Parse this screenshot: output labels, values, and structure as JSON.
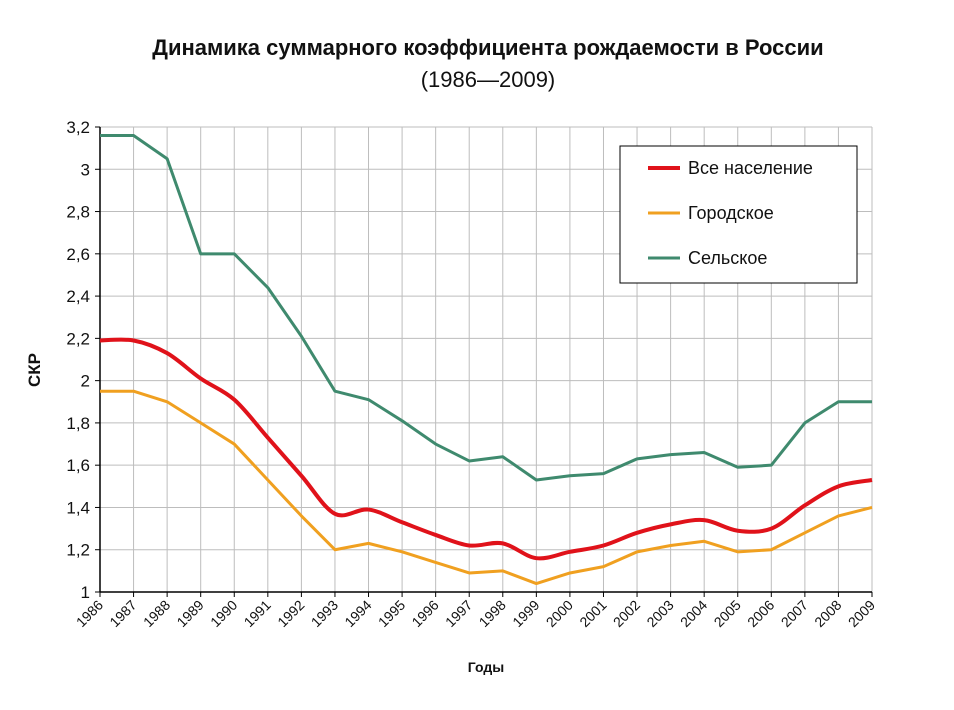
{
  "chart_data": {
    "type": "line",
    "title": "Динамика суммарного коэффициента рождаемости в России",
    "subtitle": "(1986—2009)",
    "xlabel": "Годы",
    "ylabel": "СКР",
    "ylim": [
      1,
      3.2
    ],
    "yticks": [
      "1",
      "1,2",
      "1,4",
      "1,6",
      "1,8",
      "2",
      "2,2",
      "2,4",
      "2,6",
      "2,8",
      "3",
      "3,2"
    ],
    "x": [
      1986,
      1987,
      1988,
      1989,
      1990,
      1991,
      1992,
      1993,
      1994,
      1995,
      1996,
      1997,
      1998,
      1999,
      2000,
      2001,
      2002,
      2003,
      2004,
      2005,
      2006,
      2007,
      2008,
      2009
    ],
    "grid": true,
    "legend_position": "top-right",
    "series": [
      {
        "name": "Все население",
        "color": "#e0121a",
        "smooth": true,
        "values": [
          2.19,
          2.19,
          2.13,
          2.01,
          1.91,
          1.73,
          1.55,
          1.37,
          1.39,
          1.33,
          1.27,
          1.22,
          1.23,
          1.16,
          1.19,
          1.22,
          1.28,
          1.32,
          1.34,
          1.29,
          1.3,
          1.41,
          1.5,
          1.53
        ]
      },
      {
        "name": "Городское",
        "color": "#f0a020",
        "smooth": false,
        "values": [
          1.95,
          1.95,
          1.9,
          1.8,
          1.7,
          1.53,
          1.36,
          1.2,
          1.23,
          1.19,
          1.14,
          1.09,
          1.1,
          1.04,
          1.09,
          1.12,
          1.19,
          1.22,
          1.24,
          1.19,
          1.2,
          1.28,
          1.36,
          1.4
        ]
      },
      {
        "name": "Сельское",
        "color": "#3f8a6e",
        "smooth": false,
        "values": [
          3.16,
          3.16,
          3.05,
          2.6,
          2.6,
          2.44,
          2.21,
          1.95,
          1.91,
          1.81,
          1.7,
          1.62,
          1.64,
          1.53,
          1.55,
          1.56,
          1.63,
          1.65,
          1.66,
          1.59,
          1.6,
          1.8,
          1.9,
          1.9
        ]
      }
    ]
  }
}
